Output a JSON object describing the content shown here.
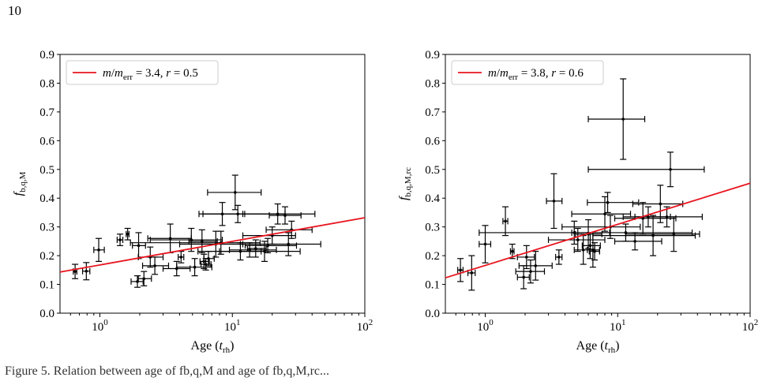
{
  "page": {
    "number": "10",
    "footer_caption": "Figure 5. Relation between age of fb,q,M and age of fb,q,M,rc..."
  },
  "chart_data": [
    {
      "type": "scatter",
      "title": "",
      "xlabel": "Age (t_rh)",
      "ylabel": "f_b,q,M",
      "xscale": "log",
      "xlim": [
        0.5,
        100
      ],
      "ylim": [
        0.0,
        0.9
      ],
      "yticks": [
        "0.0",
        "0.1",
        "0.2",
        "0.3",
        "0.4",
        "0.5",
        "0.6",
        "0.7",
        "0.8",
        "0.9"
      ],
      "xticks": [
        "10^0",
        "10^1",
        "10^2"
      ],
      "legend": {
        "label": "m/m_err = 3.4, r = 0.5",
        "placement": "top-left"
      },
      "fit_line": {
        "color": "#e8141e",
        "x": [
          0.5,
          100
        ],
        "y": [
          0.143,
          0.332
        ]
      },
      "points": [
        {
          "x": 0.65,
          "y": 0.145,
          "xerr": [
            0.02,
            0.02
          ],
          "yerr": [
            0.025,
            0.025
          ]
        },
        {
          "x": 0.79,
          "y": 0.146,
          "xerr": [
            0.05,
            0.05
          ],
          "yerr": [
            0.03,
            0.03
          ]
        },
        {
          "x": 0.98,
          "y": 0.22,
          "xerr": [
            0.08,
            0.1
          ],
          "yerr": [
            0.04,
            0.04
          ]
        },
        {
          "x": 1.42,
          "y": 0.255,
          "xerr": [
            0.07,
            0.07
          ],
          "yerr": [
            0.02,
            0.02
          ]
        },
        {
          "x": 1.62,
          "y": 0.275,
          "xerr": [
            0.04,
            0.04
          ],
          "yerr": [
            0.02,
            0.02
          ]
        },
        {
          "x": 1.92,
          "y": 0.11,
          "xerr": [
            0.2,
            0.2
          ],
          "yerr": [
            0.02,
            0.02
          ]
        },
        {
          "x": 1.96,
          "y": 0.235,
          "xerr": [
            0.2,
            0.25
          ],
          "yerr": [
            0.045,
            0.045
          ]
        },
        {
          "x": 2.15,
          "y": 0.12,
          "xerr": [
            0.2,
            0.3
          ],
          "yerr": [
            0.025,
            0.025
          ]
        },
        {
          "x": 2.4,
          "y": 0.195,
          "xerr": [
            0.45,
            0.6
          ],
          "yerr": [
            0.035,
            0.035
          ]
        },
        {
          "x": 2.6,
          "y": 0.165,
          "xerr": [
            0.5,
            0.7
          ],
          "yerr": [
            0.03,
            0.03
          ]
        },
        {
          "x": 3.4,
          "y": 0.26,
          "xerr": [
            1.1,
            1.5
          ],
          "yerr": [
            0.05,
            0.05
          ]
        },
        {
          "x": 3.8,
          "y": 0.155,
          "xerr": [
            0.8,
            1.0
          ],
          "yerr": [
            0.025,
            0.025
          ]
        },
        {
          "x": 4.1,
          "y": 0.195,
          "xerr": [
            0.2,
            0.2
          ],
          "yerr": [
            0.02,
            0.02
          ]
        },
        {
          "x": 4.9,
          "y": 0.255,
          "xerr": [
            2.5,
            3.5
          ],
          "yerr": [
            0.04,
            0.04
          ]
        },
        {
          "x": 5.2,
          "y": 0.16,
          "xerr": [
            1.4,
            1.8
          ],
          "yerr": [
            0.03,
            0.03
          ]
        },
        {
          "x": 5.9,
          "y": 0.25,
          "xerr": [
            1.2,
            1.8
          ],
          "yerr": [
            0.04,
            0.04
          ]
        },
        {
          "x": 6.1,
          "y": 0.18,
          "xerr": [
            0.4,
            0.6
          ],
          "yerr": [
            0.025,
            0.025
          ]
        },
        {
          "x": 6.3,
          "y": 0.17,
          "xerr": [
            0.5,
            0.6
          ],
          "yerr": [
            0.02,
            0.02
          ]
        },
        {
          "x": 6.6,
          "y": 0.19,
          "xerr": [
            0.5,
            0.7
          ],
          "yerr": [
            0.025,
            0.025
          ]
        },
        {
          "x": 7.5,
          "y": 0.24,
          "xerr": [
            3.5,
            4.5
          ],
          "yerr": [
            0.045,
            0.045
          ]
        },
        {
          "x": 8.2,
          "y": 0.245,
          "xerr": [
            6.5,
            8
          ],
          "yerr": [
            0.04,
            0.04
          ]
        },
        {
          "x": 8.4,
          "y": 0.345,
          "xerr": [
            2.8,
            4
          ],
          "yerr": [
            0.04,
            0.04
          ]
        },
        {
          "x": 10.5,
          "y": 0.42,
          "xerr": [
            4,
            6
          ],
          "yerr": [
            0.06,
            0.06
          ]
        },
        {
          "x": 11,
          "y": 0.345,
          "xerr": [
            5,
            14
          ],
          "yerr": [
            0.03,
            0.03
          ]
        },
        {
          "x": 11.5,
          "y": 0.215,
          "xerr": [
            3.5,
            5
          ],
          "yerr": [
            0.03,
            0.03
          ]
        },
        {
          "x": 13.5,
          "y": 0.22,
          "xerr": [
            4,
            8
          ],
          "yerr": [
            0.025,
            0.025
          ]
        },
        {
          "x": 15,
          "y": 0.225,
          "xerr": [
            2,
            3
          ],
          "yerr": [
            0.03,
            0.03
          ]
        },
        {
          "x": 17.5,
          "y": 0.215,
          "xerr": [
            12,
            15
          ],
          "yerr": [
            0.035,
            0.035
          ]
        },
        {
          "x": 18.5,
          "y": 0.235,
          "xerr": [
            6,
            12
          ],
          "yerr": [
            0.025,
            0.025
          ]
        },
        {
          "x": 20,
          "y": 0.27,
          "xerr": [
            8,
            10
          ],
          "yerr": [
            0.03,
            0.03
          ]
        },
        {
          "x": 22,
          "y": 0.345,
          "xerr": [
            10,
            20
          ],
          "yerr": [
            0.035,
            0.035
          ]
        },
        {
          "x": 25,
          "y": 0.34,
          "xerr": [
            6,
            8
          ],
          "yerr": [
            0.03,
            0.03
          ]
        },
        {
          "x": 26.5,
          "y": 0.24,
          "xerr": [
            15,
            20
          ],
          "yerr": [
            0.04,
            0.04
          ]
        },
        {
          "x": 28,
          "y": 0.29,
          "xerr": [
            10,
            12
          ],
          "yerr": [
            0.03,
            0.03
          ]
        }
      ]
    },
    {
      "type": "scatter",
      "title": "",
      "xlabel": "Age (t_rh)",
      "ylabel": "f_b,q,M,rc",
      "xscale": "log",
      "xlim": [
        0.5,
        100
      ],
      "ylim": [
        0.0,
        0.9
      ],
      "yticks": [
        "0.0",
        "0.1",
        "0.2",
        "0.3",
        "0.4",
        "0.5",
        "0.6",
        "0.7",
        "0.8",
        "0.9"
      ],
      "xticks": [
        "10^0",
        "10^1",
        "10^2"
      ],
      "legend": {
        "label": "m/m_err = 3.8, r = 0.6",
        "placement": "top-left"
      },
      "fit_line": {
        "color": "#e8141e",
        "x": [
          0.5,
          100
        ],
        "y": [
          0.123,
          0.452
        ]
      },
      "points": [
        {
          "x": 0.65,
          "y": 0.15,
          "xerr": [
            0.03,
            0.03
          ],
          "yerr": [
            0.04,
            0.04
          ]
        },
        {
          "x": 0.79,
          "y": 0.14,
          "xerr": [
            0.05,
            0.05
          ],
          "yerr": [
            0.06,
            0.06
          ]
        },
        {
          "x": 1.0,
          "y": 0.24,
          "xerr": [
            0.1,
            0.1
          ],
          "yerr": [
            0.065,
            0.065
          ]
        },
        {
          "x": 1.42,
          "y": 0.32,
          "xerr": [
            0.06,
            0.06
          ],
          "yerr": [
            0.05,
            0.05
          ]
        },
        {
          "x": 1.6,
          "y": 0.215,
          "xerr": [
            0.05,
            0.05
          ],
          "yerr": [
            0.025,
            0.025
          ]
        },
        {
          "x": 1.95,
          "y": 0.125,
          "xerr": [
            0.2,
            0.2
          ],
          "yerr": [
            0.04,
            0.04
          ]
        },
        {
          "x": 2.05,
          "y": 0.195,
          "xerr": [
            0.3,
            0.3
          ],
          "yerr": [
            0.04,
            0.04
          ]
        },
        {
          "x": 2.2,
          "y": 0.145,
          "xerr": [
            0.5,
            0.6
          ],
          "yerr": [
            0.04,
            0.04
          ]
        },
        {
          "x": 2.4,
          "y": 0.165,
          "xerr": [
            0.6,
            0.8
          ],
          "yerr": [
            0.05,
            0.05
          ]
        },
        {
          "x": 3.3,
          "y": 0.39,
          "xerr": [
            0.4,
            0.5
          ],
          "yerr": [
            0.095,
            0.095
          ]
        },
        {
          "x": 3.6,
          "y": 0.195,
          "xerr": [
            0.2,
            0.2
          ],
          "yerr": [
            0.025,
            0.025
          ]
        },
        {
          "x": 4.7,
          "y": 0.28,
          "xerr": [
            3.8,
            4
          ],
          "yerr": [
            0.04,
            0.04
          ]
        },
        {
          "x": 5.0,
          "y": 0.255,
          "xerr": [
            2,
            3
          ],
          "yerr": [
            0.04,
            0.04
          ]
        },
        {
          "x": 5.5,
          "y": 0.22,
          "xerr": [
            0.8,
            1.2
          ],
          "yerr": [
            0.05,
            0.05
          ]
        },
        {
          "x": 6.0,
          "y": 0.275,
          "xerr": [
            1.2,
            1.6
          ],
          "yerr": [
            0.05,
            0.05
          ]
        },
        {
          "x": 6.2,
          "y": 0.235,
          "xerr": [
            0.8,
            1.2
          ],
          "yerr": [
            0.045,
            0.045
          ]
        },
        {
          "x": 6.5,
          "y": 0.22,
          "xerr": [
            0.6,
            0.8
          ],
          "yerr": [
            0.06,
            0.06
          ]
        },
        {
          "x": 6.7,
          "y": 0.215,
          "xerr": [
            0.6,
            0.6
          ],
          "yerr": [
            0.03,
            0.03
          ]
        },
        {
          "x": 8.0,
          "y": 0.345,
          "xerr": [
            3.5,
            4.5
          ],
          "yerr": [
            0.06,
            0.06
          ]
        },
        {
          "x": 8.4,
          "y": 0.385,
          "xerr": [
            2.5,
            6
          ],
          "yerr": [
            0.035,
            0.035
          ]
        },
        {
          "x": 8.8,
          "y": 0.3,
          "xerr": [
            5,
            6
          ],
          "yerr": [
            0.04,
            0.04
          ]
        },
        {
          "x": 11,
          "y": 0.675,
          "xerr": [
            5,
            5
          ],
          "yerr": [
            0.14,
            0.14
          ]
        },
        {
          "x": 11.5,
          "y": 0.28,
          "xerr": [
            7,
            25
          ],
          "yerr": [
            0.03,
            0.03
          ]
        },
        {
          "x": 13.5,
          "y": 0.25,
          "xerr": [
            4,
            8
          ],
          "yerr": [
            0.03,
            0.03
          ]
        },
        {
          "x": 15.5,
          "y": 0.33,
          "xerr": [
            6,
            12
          ],
          "yerr": [
            0.055,
            0.055
          ]
        },
        {
          "x": 17,
          "y": 0.335,
          "xerr": [
            6,
            8
          ],
          "yerr": [
            0.035,
            0.035
          ]
        },
        {
          "x": 18.5,
          "y": 0.27,
          "xerr": [
            12,
            20
          ],
          "yerr": [
            0.07,
            0.07
          ]
        },
        {
          "x": 21,
          "y": 0.38,
          "xerr": [
            8,
            10
          ],
          "yerr": [
            0.065,
            0.065
          ]
        },
        {
          "x": 23.5,
          "y": 0.335,
          "xerr": [
            10,
            20
          ],
          "yerr": [
            0.035,
            0.035
          ]
        },
        {
          "x": 25,
          "y": 0.5,
          "xerr": [
            19,
            20
          ],
          "yerr": [
            0.06,
            0.06
          ]
        },
        {
          "x": 26.5,
          "y": 0.275,
          "xerr": [
            15,
            15
          ],
          "yerr": [
            0.06,
            0.06
          ]
        }
      ]
    }
  ]
}
